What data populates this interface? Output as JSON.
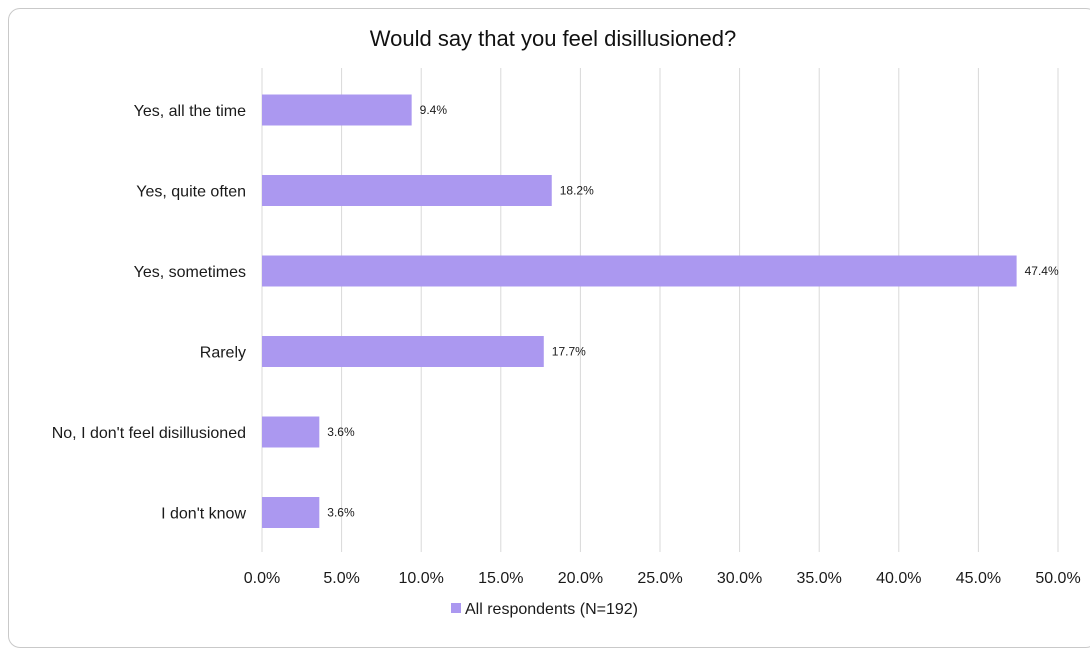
{
  "chart_data": {
    "type": "bar",
    "orientation": "horizontal",
    "title": "Would say that you feel disillusioned?",
    "categories": [
      "Yes, all the time",
      "Yes, quite often",
      "Yes, sometimes",
      "Rarely",
      "No, I don't feel disillusioned",
      "I don't know"
    ],
    "series": [
      {
        "name": "All respondents (N=192)",
        "values": [
          9.4,
          18.2,
          47.4,
          17.7,
          3.6,
          3.6
        ],
        "labels": [
          "9.4%",
          "18.2%",
          "47.4%",
          "17.7%",
          "3.6%",
          "3.6%"
        ],
        "color": "#ab98f0"
      }
    ],
    "x_ticks": [
      "0.0%",
      "5.0%",
      "10.0%",
      "15.0%",
      "20.0%",
      "25.0%",
      "30.0%",
      "35.0%",
      "40.0%",
      "45.0%",
      "50.0%"
    ],
    "xlim": [
      0,
      50
    ],
    "grid": "vertical",
    "gridline_color": "#d9d9d9",
    "legend_position": "bottom"
  }
}
